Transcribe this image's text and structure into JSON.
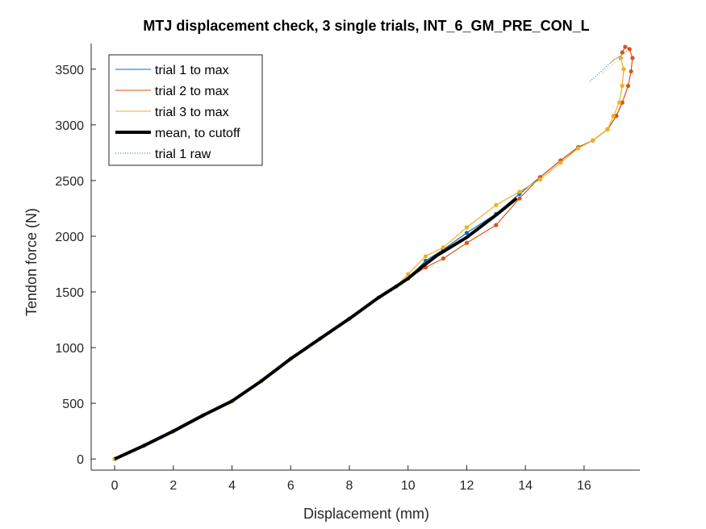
{
  "chart_data": {
    "type": "line",
    "title": "MTJ displacement check, 3 single trials, INT_6_GM_PRE_CON_L",
    "xlabel": "Displacement (mm)",
    "ylabel": "Tendon force (N)",
    "xlim": [
      -0.8,
      17.9
    ],
    "ylim": [
      -100,
      3730
    ],
    "xticks": [
      0,
      2,
      4,
      6,
      8,
      10,
      12,
      14,
      16
    ],
    "yticks": [
      0,
      500,
      1000,
      1500,
      2000,
      2500,
      3000,
      3500
    ],
    "legend_position": "top-left",
    "grid": false,
    "colors": {
      "trial1": "#0072BD",
      "trial2": "#D95319",
      "trial3": "#EDB120",
      "mean": "#000000"
    },
    "legend": [
      {
        "label": "trial 1 to max",
        "style": "thin",
        "color": "#0072BD"
      },
      {
        "label": "trial 2 to max",
        "style": "thin",
        "color": "#D95319"
      },
      {
        "label": "trial 3 to max",
        "style": "thin",
        "color": "#EDB120"
      },
      {
        "label": "mean, to cutoff",
        "style": "thick",
        "color": "#000000"
      },
      {
        "label": "trial 1 raw",
        "style": "dotted",
        "color": "#0072BD"
      }
    ],
    "series": [
      {
        "name": "trial 1 to max",
        "x": [
          0,
          1.0,
          2.0,
          3.0,
          4.0,
          5.0,
          6.0,
          7.0,
          8.0,
          9.0,
          9.6,
          10.0,
          10.6,
          11.2,
          12.0,
          13.0,
          13.8,
          14.5,
          15.2,
          15.8,
          16.3,
          16.8,
          17.1,
          17.3
        ],
        "y": [
          0,
          120,
          250,
          390,
          520,
          700,
          900,
          1080,
          1260,
          1450,
          1550,
          1620,
          1780,
          1880,
          2030,
          2200,
          2380,
          2530,
          2680,
          2800,
          2860,
          2960,
          3080,
          3200
        ]
      },
      {
        "name": "trial 2 to max",
        "x": [
          0,
          1.0,
          2.0,
          3.0,
          4.0,
          5.0,
          6.0,
          7.0,
          8.0,
          9.0,
          9.6,
          10.0,
          10.6,
          11.2,
          12.0,
          13.0,
          13.8,
          14.5,
          15.2,
          15.8,
          16.3,
          16.8,
          17.1,
          17.3,
          17.5,
          17.6,
          17.65,
          17.55,
          17.4,
          17.3
        ],
        "y": [
          0,
          120,
          250,
          390,
          520,
          700,
          900,
          1080,
          1260,
          1450,
          1550,
          1620,
          1720,
          1800,
          1940,
          2100,
          2340,
          2530,
          2680,
          2800,
          2860,
          2960,
          3080,
          3200,
          3350,
          3480,
          3600,
          3680,
          3700,
          3650
        ]
      },
      {
        "name": "trial 3 to max",
        "x": [
          0,
          1.0,
          2.0,
          3.0,
          4.0,
          5.0,
          6.0,
          7.0,
          8.0,
          9.0,
          9.6,
          10.0,
          10.6,
          11.2,
          12.0,
          13.0,
          13.8,
          14.5,
          15.2,
          15.8,
          16.3,
          16.8,
          17.0,
          17.2,
          17.3,
          17.35,
          17.25
        ],
        "y": [
          0,
          120,
          250,
          390,
          520,
          700,
          900,
          1080,
          1260,
          1450,
          1550,
          1660,
          1820,
          1900,
          2080,
          2280,
          2400,
          2510,
          2660,
          2790,
          2860,
          2960,
          3080,
          3200,
          3350,
          3500,
          3600
        ]
      },
      {
        "name": "mean, to cutoff",
        "x": [
          0,
          1.0,
          2.0,
          3.0,
          4.0,
          5.0,
          6.0,
          7.0,
          8.0,
          9.0,
          9.6,
          10.0,
          10.5,
          11.0,
          12.0,
          13.0,
          13.7
        ],
        "y": [
          0,
          120,
          250,
          390,
          520,
          700,
          900,
          1080,
          1260,
          1450,
          1550,
          1620,
          1730,
          1830,
          1990,
          2190,
          2340
        ]
      },
      {
        "name": "trial 1 raw",
        "x": [
          16.2,
          16.5,
          16.8,
          17.0,
          17.2,
          17.35
        ],
        "y": [
          3390,
          3460,
          3530,
          3580,
          3610,
          3640
        ]
      }
    ],
    "raw_trails": [
      {
        "color": "#D95319",
        "x": [
          16.9,
          17.1,
          17.3,
          17.5,
          17.65
        ],
        "y": [
          3560,
          3600,
          3630,
          3670,
          3690
        ]
      },
      {
        "color": "#EDB120",
        "x": [
          16.6,
          16.8,
          17.0,
          17.2,
          17.35
        ],
        "y": [
          3460,
          3500,
          3550,
          3580,
          3600
        ]
      }
    ]
  }
}
